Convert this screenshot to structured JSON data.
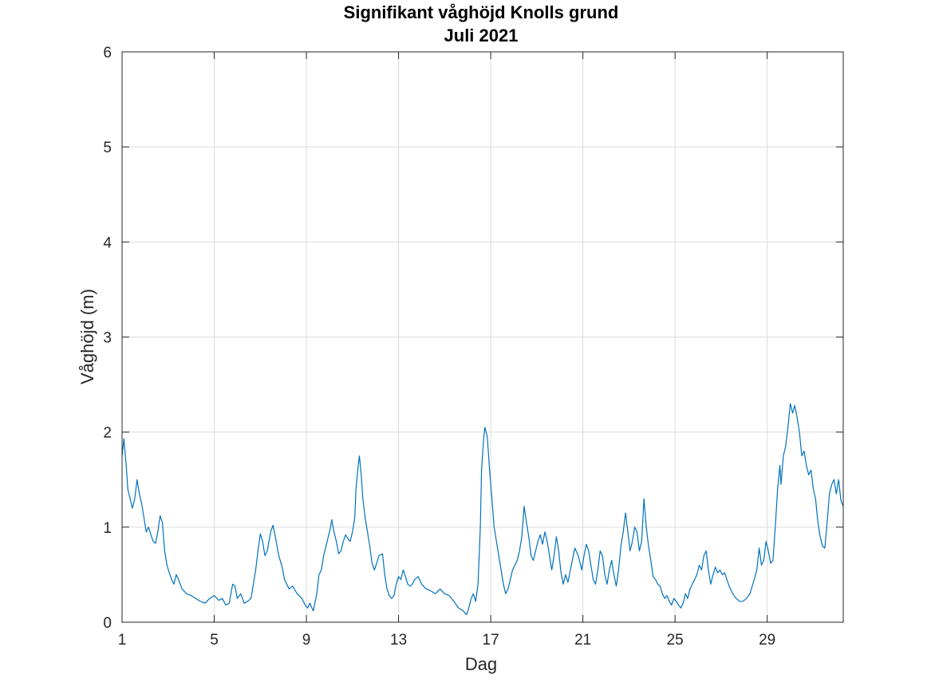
{
  "chart_data": {
    "type": "line",
    "title": [
      "Signifikant våghöjd Knolls grund",
      "Juli 2021"
    ],
    "xlabel": "Dag",
    "ylabel": "Våghöjd (m)",
    "xlim": [
      1,
      32.3
    ],
    "ylim": [
      0,
      6
    ],
    "xticks": [
      1,
      5,
      9,
      13,
      17,
      21,
      25,
      29
    ],
    "yticks": [
      0,
      1,
      2,
      3,
      4,
      5,
      6
    ],
    "grid": true,
    "series": [
      {
        "color": "#0072BD",
        "points": [
          [
            1.0,
            1.75
          ],
          [
            1.08,
            1.93
          ],
          [
            1.18,
            1.65
          ],
          [
            1.25,
            1.4
          ],
          [
            1.35,
            1.3
          ],
          [
            1.45,
            1.2
          ],
          [
            1.55,
            1.3
          ],
          [
            1.65,
            1.5
          ],
          [
            1.75,
            1.35
          ],
          [
            1.85,
            1.25
          ],
          [
            1.95,
            1.1
          ],
          [
            2.05,
            0.95
          ],
          [
            2.15,
            1.0
          ],
          [
            2.25,
            0.92
          ],
          [
            2.35,
            0.85
          ],
          [
            2.45,
            0.83
          ],
          [
            2.55,
            0.95
          ],
          [
            2.65,
            1.12
          ],
          [
            2.75,
            1.05
          ],
          [
            2.85,
            0.75
          ],
          [
            2.95,
            0.6
          ],
          [
            3.05,
            0.52
          ],
          [
            3.15,
            0.45
          ],
          [
            3.25,
            0.4
          ],
          [
            3.35,
            0.5
          ],
          [
            3.45,
            0.45
          ],
          [
            3.6,
            0.35
          ],
          [
            3.8,
            0.3
          ],
          [
            4.0,
            0.28
          ],
          [
            4.2,
            0.25
          ],
          [
            4.4,
            0.22
          ],
          [
            4.6,
            0.2
          ],
          [
            4.8,
            0.25
          ],
          [
            5.0,
            0.28
          ],
          [
            5.2,
            0.23
          ],
          [
            5.35,
            0.25
          ],
          [
            5.5,
            0.18
          ],
          [
            5.65,
            0.2
          ],
          [
            5.8,
            0.4
          ],
          [
            5.9,
            0.38
          ],
          [
            6.0,
            0.25
          ],
          [
            6.15,
            0.3
          ],
          [
            6.3,
            0.2
          ],
          [
            6.45,
            0.22
          ],
          [
            6.6,
            0.25
          ],
          [
            6.7,
            0.4
          ],
          [
            6.8,
            0.55
          ],
          [
            6.9,
            0.75
          ],
          [
            7.0,
            0.93
          ],
          [
            7.1,
            0.85
          ],
          [
            7.2,
            0.7
          ],
          [
            7.3,
            0.75
          ],
          [
            7.45,
            0.95
          ],
          [
            7.55,
            1.02
          ],
          [
            7.65,
            0.9
          ],
          [
            7.8,
            0.7
          ],
          [
            7.95,
            0.58
          ],
          [
            8.05,
            0.45
          ],
          [
            8.15,
            0.4
          ],
          [
            8.25,
            0.35
          ],
          [
            8.4,
            0.38
          ],
          [
            8.6,
            0.3
          ],
          [
            8.8,
            0.25
          ],
          [
            8.95,
            0.18
          ],
          [
            9.05,
            0.15
          ],
          [
            9.15,
            0.2
          ],
          [
            9.3,
            0.12
          ],
          [
            9.45,
            0.3
          ],
          [
            9.55,
            0.5
          ],
          [
            9.65,
            0.55
          ],
          [
            9.75,
            0.7
          ],
          [
            9.85,
            0.8
          ],
          [
            9.95,
            0.9
          ],
          [
            10.05,
            1.0
          ],
          [
            10.1,
            1.08
          ],
          [
            10.2,
            0.95
          ],
          [
            10.3,
            0.85
          ],
          [
            10.4,
            0.72
          ],
          [
            10.5,
            0.75
          ],
          [
            10.6,
            0.85
          ],
          [
            10.7,
            0.92
          ],
          [
            10.8,
            0.88
          ],
          [
            10.9,
            0.85
          ],
          [
            11.0,
            0.95
          ],
          [
            11.1,
            1.1
          ],
          [
            11.15,
            1.4
          ],
          [
            11.25,
            1.65
          ],
          [
            11.3,
            1.75
          ],
          [
            11.38,
            1.55
          ],
          [
            11.45,
            1.3
          ],
          [
            11.55,
            1.1
          ],
          [
            11.65,
            0.95
          ],
          [
            11.75,
            0.8
          ],
          [
            11.85,
            0.62
          ],
          [
            11.95,
            0.55
          ],
          [
            12.05,
            0.62
          ],
          [
            12.15,
            0.7
          ],
          [
            12.3,
            0.72
          ],
          [
            12.4,
            0.5
          ],
          [
            12.5,
            0.35
          ],
          [
            12.6,
            0.28
          ],
          [
            12.7,
            0.25
          ],
          [
            12.8,
            0.28
          ],
          [
            12.9,
            0.4
          ],
          [
            13.0,
            0.48
          ],
          [
            13.1,
            0.45
          ],
          [
            13.2,
            0.55
          ],
          [
            13.3,
            0.48
          ],
          [
            13.4,
            0.4
          ],
          [
            13.5,
            0.38
          ],
          [
            13.6,
            0.4
          ],
          [
            13.7,
            0.45
          ],
          [
            13.85,
            0.48
          ],
          [
            14.0,
            0.4
          ],
          [
            14.2,
            0.35
          ],
          [
            14.4,
            0.33
          ],
          [
            14.6,
            0.3
          ],
          [
            14.8,
            0.35
          ],
          [
            15.0,
            0.3
          ],
          [
            15.2,
            0.28
          ],
          [
            15.4,
            0.22
          ],
          [
            15.6,
            0.15
          ],
          [
            15.8,
            0.12
          ],
          [
            15.95,
            0.08
          ],
          [
            16.05,
            0.15
          ],
          [
            16.15,
            0.25
          ],
          [
            16.25,
            0.3
          ],
          [
            16.35,
            0.22
          ],
          [
            16.45,
            0.4
          ],
          [
            16.55,
            1.0
          ],
          [
            16.6,
            1.6
          ],
          [
            16.7,
            1.95
          ],
          [
            16.75,
            2.05
          ],
          [
            16.85,
            1.95
          ],
          [
            16.95,
            1.6
          ],
          [
            17.05,
            1.3
          ],
          [
            17.15,
            1.0
          ],
          [
            17.25,
            0.85
          ],
          [
            17.35,
            0.7
          ],
          [
            17.45,
            0.55
          ],
          [
            17.55,
            0.4
          ],
          [
            17.65,
            0.3
          ],
          [
            17.75,
            0.35
          ],
          [
            17.85,
            0.45
          ],
          [
            17.95,
            0.55
          ],
          [
            18.05,
            0.6
          ],
          [
            18.15,
            0.65
          ],
          [
            18.25,
            0.75
          ],
          [
            18.35,
            0.9
          ],
          [
            18.45,
            1.22
          ],
          [
            18.55,
            1.05
          ],
          [
            18.65,
            0.9
          ],
          [
            18.75,
            0.7
          ],
          [
            18.85,
            0.65
          ],
          [
            18.95,
            0.75
          ],
          [
            19.05,
            0.85
          ],
          [
            19.15,
            0.92
          ],
          [
            19.25,
            0.82
          ],
          [
            19.35,
            0.95
          ],
          [
            19.45,
            0.85
          ],
          [
            19.55,
            0.7
          ],
          [
            19.65,
            0.55
          ],
          [
            19.75,
            0.7
          ],
          [
            19.85,
            0.9
          ],
          [
            19.95,
            0.75
          ],
          [
            20.05,
            0.52
          ],
          [
            20.15,
            0.4
          ],
          [
            20.25,
            0.5
          ],
          [
            20.35,
            0.42
          ],
          [
            20.5,
            0.6
          ],
          [
            20.65,
            0.78
          ],
          [
            20.8,
            0.7
          ],
          [
            20.95,
            0.55
          ],
          [
            21.05,
            0.7
          ],
          [
            21.15,
            0.82
          ],
          [
            21.25,
            0.75
          ],
          [
            21.35,
            0.6
          ],
          [
            21.45,
            0.45
          ],
          [
            21.55,
            0.4
          ],
          [
            21.65,
            0.55
          ],
          [
            21.75,
            0.75
          ],
          [
            21.85,
            0.7
          ],
          [
            21.95,
            0.5
          ],
          [
            22.05,
            0.4
          ],
          [
            22.15,
            0.55
          ],
          [
            22.25,
            0.65
          ],
          [
            22.35,
            0.5
          ],
          [
            22.45,
            0.38
          ],
          [
            22.55,
            0.55
          ],
          [
            22.65,
            0.8
          ],
          [
            22.75,
            0.95
          ],
          [
            22.85,
            1.15
          ],
          [
            22.95,
            0.95
          ],
          [
            23.05,
            0.75
          ],
          [
            23.15,
            0.85
          ],
          [
            23.25,
            1.0
          ],
          [
            23.35,
            0.95
          ],
          [
            23.45,
            0.75
          ],
          [
            23.55,
            0.85
          ],
          [
            23.65,
            1.3
          ],
          [
            23.75,
            1.0
          ],
          [
            23.85,
            0.8
          ],
          [
            23.95,
            0.65
          ],
          [
            24.05,
            0.48
          ],
          [
            24.15,
            0.45
          ],
          [
            24.25,
            0.4
          ],
          [
            24.35,
            0.38
          ],
          [
            24.45,
            0.3
          ],
          [
            24.55,
            0.25
          ],
          [
            24.65,
            0.28
          ],
          [
            24.75,
            0.22
          ],
          [
            24.85,
            0.18
          ],
          [
            24.95,
            0.25
          ],
          [
            25.05,
            0.22
          ],
          [
            25.15,
            0.18
          ],
          [
            25.25,
            0.15
          ],
          [
            25.35,
            0.2
          ],
          [
            25.45,
            0.3
          ],
          [
            25.55,
            0.25
          ],
          [
            25.65,
            0.35
          ],
          [
            25.75,
            0.4
          ],
          [
            25.85,
            0.45
          ],
          [
            25.95,
            0.5
          ],
          [
            26.05,
            0.6
          ],
          [
            26.15,
            0.55
          ],
          [
            26.25,
            0.7
          ],
          [
            26.35,
            0.75
          ],
          [
            26.45,
            0.55
          ],
          [
            26.55,
            0.4
          ],
          [
            26.65,
            0.5
          ],
          [
            26.75,
            0.58
          ],
          [
            26.85,
            0.52
          ],
          [
            26.95,
            0.55
          ],
          [
            27.05,
            0.5
          ],
          [
            27.15,
            0.52
          ],
          [
            27.25,
            0.45
          ],
          [
            27.35,
            0.38
          ],
          [
            27.5,
            0.3
          ],
          [
            27.65,
            0.25
          ],
          [
            27.8,
            0.22
          ],
          [
            27.95,
            0.22
          ],
          [
            28.1,
            0.25
          ],
          [
            28.25,
            0.3
          ],
          [
            28.4,
            0.42
          ],
          [
            28.55,
            0.55
          ],
          [
            28.65,
            0.78
          ],
          [
            28.75,
            0.6
          ],
          [
            28.85,
            0.65
          ],
          [
            28.95,
            0.85
          ],
          [
            29.05,
            0.75
          ],
          [
            29.15,
            0.62
          ],
          [
            29.25,
            0.65
          ],
          [
            29.35,
            1.0
          ],
          [
            29.45,
            1.4
          ],
          [
            29.55,
            1.65
          ],
          [
            29.6,
            1.45
          ],
          [
            29.7,
            1.75
          ],
          [
            29.8,
            1.85
          ],
          [
            29.9,
            2.05
          ],
          [
            30.0,
            2.3
          ],
          [
            30.1,
            2.2
          ],
          [
            30.2,
            2.28
          ],
          [
            30.3,
            2.15
          ],
          [
            30.4,
            2.0
          ],
          [
            30.5,
            1.75
          ],
          [
            30.6,
            1.8
          ],
          [
            30.7,
            1.65
          ],
          [
            30.8,
            1.55
          ],
          [
            30.9,
            1.6
          ],
          [
            31.0,
            1.4
          ],
          [
            31.1,
            1.3
          ],
          [
            31.2,
            1.05
          ],
          [
            31.3,
            0.9
          ],
          [
            31.4,
            0.8
          ],
          [
            31.5,
            0.78
          ],
          [
            31.6,
            1.05
          ],
          [
            31.7,
            1.35
          ],
          [
            31.8,
            1.45
          ],
          [
            31.9,
            1.5
          ],
          [
            32.0,
            1.35
          ],
          [
            32.1,
            1.5
          ],
          [
            32.2,
            1.28
          ],
          [
            32.3,
            1.22
          ]
        ]
      }
    ]
  }
}
